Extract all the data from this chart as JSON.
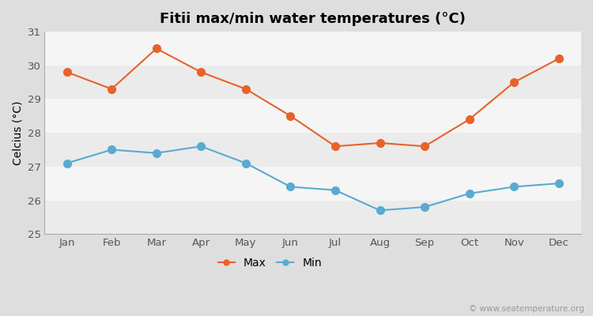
{
  "title": "Fitii max/min water temperatures (°C)",
  "ylabel": "Celcius (°C)",
  "months": [
    "Jan",
    "Feb",
    "Mar",
    "Apr",
    "May",
    "Jun",
    "Jul",
    "Aug",
    "Sep",
    "Oct",
    "Nov",
    "Dec"
  ],
  "max_temps": [
    29.8,
    29.3,
    30.5,
    29.8,
    29.3,
    28.5,
    27.6,
    27.7,
    27.6,
    28.4,
    29.5,
    30.2
  ],
  "min_temps": [
    27.1,
    27.5,
    27.4,
    27.6,
    27.1,
    26.4,
    26.3,
    25.7,
    25.8,
    26.2,
    26.4,
    26.5
  ],
  "max_color": "#E8622A",
  "min_color": "#5AAAD0",
  "ylim": [
    25,
    31
  ],
  "yticks": [
    25,
    26,
    27,
    28,
    29,
    30,
    31
  ],
  "bg_color": "#DEDEDE",
  "plot_bg_color_odd": "#EBEBEB",
  "plot_bg_color_even": "#F5F5F5",
  "watermark": "© www.seatemperature.org",
  "title_fontsize": 13,
  "label_fontsize": 10,
  "tick_fontsize": 9.5,
  "watermark_fontsize": 7.5,
  "linewidth": 1.5,
  "markersize": 7
}
